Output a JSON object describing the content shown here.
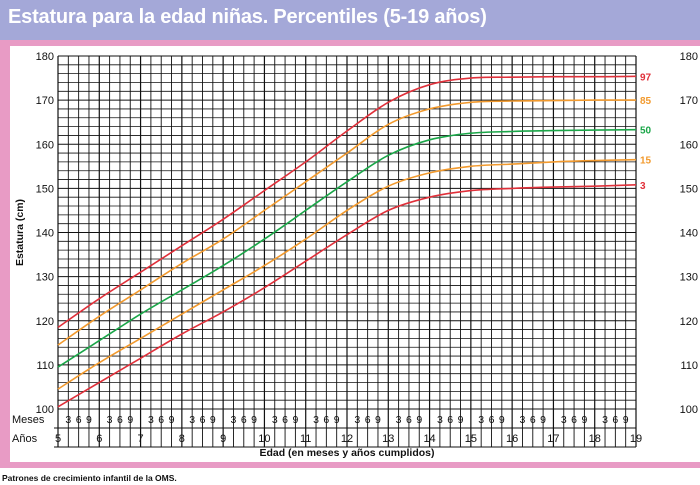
{
  "title": "Estatura para la edad niñas. Percentiles (5-19 años)",
  "footer": "Patrones de crecimiento infantil de la OMS.",
  "colors": {
    "header_bg": "#a4a8d8",
    "frame": "#e89bc5",
    "grid": "#111111"
  },
  "chart_data": {
    "type": "line",
    "title": "Estatura para la edad niñas. Percentiles (5-19 años)",
    "xlabel": "Edad (en meses y años cumplidos)",
    "ylabel": "Estatura (cm)",
    "row_labels": {
      "months": "Meses",
      "years": "Años"
    },
    "xlim": [
      5,
      19
    ],
    "ylim": [
      100,
      180
    ],
    "y_ticks": [
      100,
      110,
      120,
      130,
      140,
      150,
      160,
      170,
      180
    ],
    "year_ticks": [
      5,
      6,
      7,
      8,
      9,
      10,
      11,
      12,
      13,
      14,
      15,
      16,
      17,
      18,
      19
    ],
    "month_ticks": [
      "3",
      "6",
      "9"
    ],
    "grid": true,
    "x": [
      5,
      6,
      7,
      8,
      9,
      10,
      11,
      12,
      13,
      14,
      15,
      16,
      17,
      18,
      19
    ],
    "series": [
      {
        "name": "97",
        "color": "#e0303a",
        "values": [
          118.5,
          125,
          131,
          137,
          143,
          149.5,
          156,
          163,
          169.5,
          173.5,
          175,
          175.2,
          175.3,
          175.3,
          175.4
        ]
      },
      {
        "name": "85",
        "color": "#f29a2e",
        "values": [
          114.5,
          121,
          127,
          133,
          138.5,
          145,
          151.5,
          158,
          164.5,
          168,
          169.5,
          169.8,
          169.9,
          170,
          170
        ]
      },
      {
        "name": "50",
        "color": "#1aa648",
        "values": [
          109.5,
          115.5,
          121.5,
          127,
          132.5,
          138.5,
          145,
          151.5,
          157.5,
          161,
          162.5,
          162.9,
          163.1,
          163.2,
          163.3
        ]
      },
      {
        "name": "15",
        "color": "#f29a2e",
        "values": [
          104.5,
          110.5,
          116,
          121.5,
          127,
          132.5,
          138.5,
          145,
          150.5,
          153.5,
          155,
          155.5,
          156,
          156.3,
          156.5
        ]
      },
      {
        "name": "3",
        "color": "#e0303a",
        "values": [
          100.5,
          106,
          111.5,
          117,
          122,
          127.5,
          133.5,
          139.5,
          145,
          148,
          149.5,
          150,
          150.3,
          150.5,
          150.8
        ]
      }
    ]
  }
}
